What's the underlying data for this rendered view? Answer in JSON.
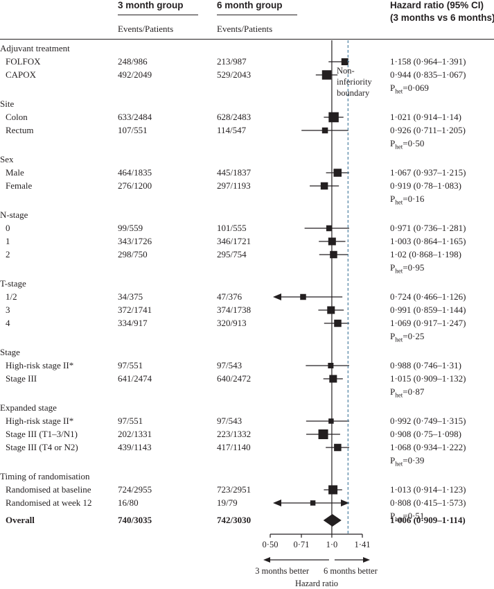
{
  "header": {
    "group3_title": "3 month group",
    "group6_title": "6 month group",
    "group3_sub": "Events/Patients",
    "group6_sub": "Events/Patients",
    "hr_title_line1": "Hazard ratio (95% CI)",
    "hr_title_line2": "(3 months vs 6 months)"
  },
  "noninferiority_label": [
    "Non-",
    "inferiority",
    "boundary"
  ],
  "chart_data": {
    "type": "forest",
    "xlabel": "Hazard ratio",
    "xscale": "log",
    "xticks": [
      {
        "value": 0.5,
        "label": "0·50"
      },
      {
        "value": 0.71,
        "label": "0·71"
      },
      {
        "value": 1.0,
        "label": "1·0"
      },
      {
        "value": 1.41,
        "label": "1·41"
      }
    ],
    "xlim": [
      0.5,
      1.41
    ],
    "reference_line": 1.0,
    "noninferiority_boundary": 1.2,
    "direction_left": "3 months better",
    "direction_right": "6 months better",
    "rows": [
      {
        "kind": "heading",
        "label": "Adjuvant treatment"
      },
      {
        "kind": "data",
        "label": "FOLFOX",
        "g3": "248/986",
        "g6": "213/987",
        "hr": 1.158,
        "lo": 0.964,
        "hi": 1.391,
        "hr_text": "1·158 (0·964–1·391)",
        "size": 1.0
      },
      {
        "kind": "data",
        "label": "CAPOX",
        "g3": "492/2049",
        "g6": "529/2043",
        "hr": 0.944,
        "lo": 0.835,
        "hi": 1.067,
        "hr_text": "0·944 (0·835–1·067)",
        "size": 1.35
      },
      {
        "kind": "phet",
        "value": "=0·069"
      },
      {
        "kind": "heading",
        "label": "Site"
      },
      {
        "kind": "data",
        "label": "Colon",
        "g3": "633/2484",
        "g6": "628/2483",
        "hr": 1.021,
        "lo": 0.914,
        "hi": 1.14,
        "hr_text": "1·021 (0·914–1·14)",
        "size": 1.45
      },
      {
        "kind": "data",
        "label": "Rectum",
        "g3": "107/551",
        "g6": "114/547",
        "hr": 0.926,
        "lo": 0.711,
        "hi": 1.205,
        "hr_text": "0·926 (0·711–1·205)",
        "size": 0.85
      },
      {
        "kind": "phet",
        "value": "=0·50"
      },
      {
        "kind": "heading",
        "label": "Sex"
      },
      {
        "kind": "data",
        "label": "Male",
        "g3": "464/1835",
        "g6": "445/1837",
        "hr": 1.067,
        "lo": 0.937,
        "hi": 1.215,
        "hr_text": "1·067 (0·937–1·215)",
        "size": 1.15
      },
      {
        "kind": "data",
        "label": "Female",
        "g3": "276/1200",
        "g6": "297/1193",
        "hr": 0.919,
        "lo": 0.78,
        "hi": 1.083,
        "hr_text": "0·919 (0·78–1·083)",
        "size": 1.05
      },
      {
        "kind": "phet",
        "value": "=0·16"
      },
      {
        "kind": "heading",
        "label": "N-stage"
      },
      {
        "kind": "data",
        "label": "0",
        "g3": "99/559",
        "g6": "101/555",
        "hr": 0.971,
        "lo": 0.736,
        "hi": 1.281,
        "hr_text": "0·971 (0·736–1·281)",
        "size": 0.85
      },
      {
        "kind": "data",
        "label": "1",
        "g3": "343/1726",
        "g6": "346/1721",
        "hr": 1.003,
        "lo": 0.864,
        "hi": 1.165,
        "hr_text": "1·003 (0·864–1·165)",
        "size": 1.1
      },
      {
        "kind": "data",
        "label": "2",
        "g3": "298/750",
        "g6": "295/754",
        "hr": 1.02,
        "lo": 0.868,
        "hi": 1.198,
        "hr_text": "1·02 (0·868–1·198)",
        "size": 1.05
      },
      {
        "kind": "phet",
        "value": "=0·95"
      },
      {
        "kind": "heading",
        "label": "T-stage"
      },
      {
        "kind": "data",
        "label": "1/2",
        "g3": "34/375",
        "g6": "47/376",
        "hr": 0.724,
        "lo": 0.466,
        "hi": 1.126,
        "hr_text": "0·724 (0·466–1·126)",
        "size": 0.85,
        "arrow_left": true
      },
      {
        "kind": "data",
        "label": "3",
        "g3": "372/1741",
        "g6": "374/1738",
        "hr": 0.991,
        "lo": 0.859,
        "hi": 1.144,
        "hr_text": "0·991 (0·859–1·144)",
        "size": 1.1
      },
      {
        "kind": "data",
        "label": "4",
        "g3": "334/917",
        "g6": "320/913",
        "hr": 1.069,
        "lo": 0.917,
        "hi": 1.247,
        "hr_text": "1·069 (0·917–1·247)",
        "size": 1.05
      },
      {
        "kind": "phet",
        "value": "=0·25"
      },
      {
        "kind": "heading",
        "label": "Stage"
      },
      {
        "kind": "data",
        "label": "High-risk stage II*",
        "g3": "97/551",
        "g6": "97/543",
        "hr": 0.988,
        "lo": 0.746,
        "hi": 1.31,
        "hr_text": "0·988 (0·746–1·31)",
        "size": 0.8
      },
      {
        "kind": "data",
        "label": "Stage III",
        "g3": "641/2474",
        "g6": "640/2472",
        "hr": 1.015,
        "lo": 0.909,
        "hi": 1.132,
        "hr_text": "1·015 (0·909–1·132)",
        "size": 1.1
      },
      {
        "kind": "phet",
        "value": "=0·87"
      },
      {
        "kind": "heading",
        "label": "Expanded stage"
      },
      {
        "kind": "data",
        "label": "High-risk stage II*",
        "g3": "97/551",
        "g6": "97/543",
        "hr": 0.992,
        "lo": 0.749,
        "hi": 1.315,
        "hr_text": "0·992 (0·749–1·315)",
        "size": 0.75
      },
      {
        "kind": "data",
        "label": "Stage III (T1–3/N1)",
        "g3": "202/1331",
        "g6": "223/1332",
        "hr": 0.908,
        "lo": 0.75,
        "hi": 1.098,
        "hr_text": "0·908 (0·75–1·098)",
        "size": 1.4
      },
      {
        "kind": "data",
        "label": "Stage III (T4 or N2)",
        "g3": "439/1143",
        "g6": "417/1140",
        "hr": 1.068,
        "lo": 0.934,
        "hi": 1.222,
        "hr_text": "1·068 (0·934–1·222)",
        "size": 1.05
      },
      {
        "kind": "phet",
        "value": "=0·39"
      },
      {
        "kind": "heading",
        "label": "Timing of randomisation"
      },
      {
        "kind": "data",
        "label": "Randomised at baseline",
        "g3": "724/2955",
        "g6": "723/2951",
        "hr": 1.013,
        "lo": 0.914,
        "hi": 1.123,
        "hr_text": "1·013 (0·914–1·123)",
        "size": 1.3
      },
      {
        "kind": "data",
        "label": "Randomised at week 12",
        "g3": "16/80",
        "g6": "19/79",
        "hr": 0.808,
        "lo": 0.415,
        "hi": 1.573,
        "hr_text": "0·808 (0·415–1·573)",
        "size": 0.75,
        "arrow_left": true,
        "arrow_right": true
      },
      {
        "kind": "phet",
        "value": "=0·51"
      },
      {
        "kind": "overall",
        "label": "Overall",
        "g3": "740/3035",
        "g6": "742/3030",
        "hr": 1.006,
        "lo": 0.909,
        "hi": 1.114,
        "hr_text": "1·006 (0·909–1·114)"
      }
    ]
  }
}
